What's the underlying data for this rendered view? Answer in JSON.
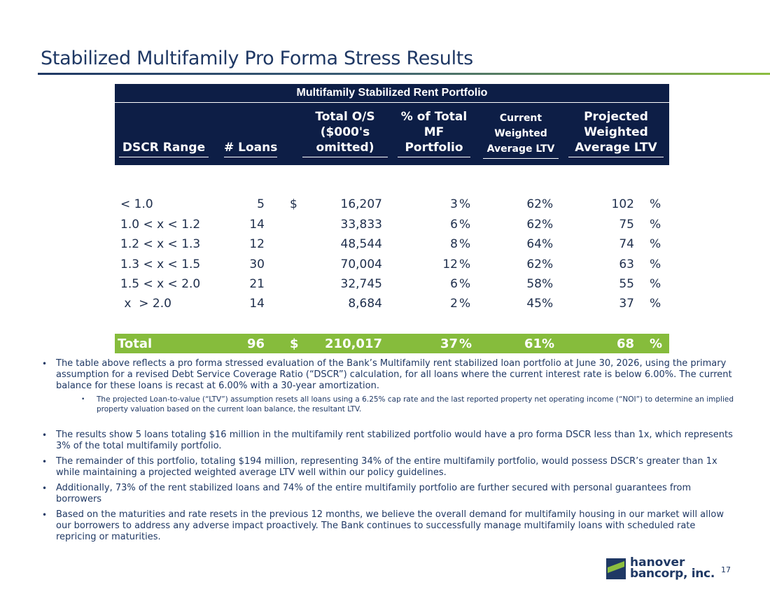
{
  "slide": {
    "title": "Stabilized Multifamily Pro Forma Stress Results",
    "page_number": "17"
  },
  "table": {
    "title": "Multifamily Stabilized Rent Portfolio",
    "headers": {
      "dscr_range": "DSCR Range",
      "loans": "# Loans",
      "total_os": [
        "Total O/S",
        "($000's",
        "omitted)"
      ],
      "pct_total": [
        "% of Total",
        "MF",
        "Portfolio"
      ],
      "current_ltv": [
        "Current",
        "Weighted",
        "Average LTV"
      ],
      "projected_ltv": [
        "Projected",
        "Weighted",
        "Average LTV"
      ]
    },
    "rows": [
      {
        "range": "< 1.0",
        "loans": "5",
        "dollar": "$",
        "total_os": "16,207",
        "pct": "3",
        "pct_sym": "%",
        "current_ltv": "62",
        "current_sym": "%",
        "projected_ltv": "102",
        "projected_sym": "%"
      },
      {
        "range": "1.0 < x  < 1.2",
        "loans": "14",
        "dollar": "",
        "total_os": "33,833",
        "pct": "6",
        "pct_sym": "%",
        "current_ltv": "62",
        "current_sym": "%",
        "projected_ltv": "75",
        "projected_sym": "%"
      },
      {
        "range": "1.2 < x  < 1.3",
        "loans": "12",
        "dollar": "",
        "total_os": "48,544",
        "pct": "8",
        "pct_sym": "%",
        "current_ltv": "64",
        "current_sym": "%",
        "projected_ltv": "74",
        "projected_sym": "%"
      },
      {
        "range": "1.3 < x  < 1.5",
        "loans": "30",
        "dollar": "",
        "total_os": "70,004",
        "pct": "12",
        "pct_sym": "%",
        "current_ltv": "62",
        "current_sym": "%",
        "projected_ltv": "63",
        "projected_sym": "%"
      },
      {
        "range": "1.5 < x  < 2.0",
        "loans": "21",
        "dollar": "",
        "total_os": "32,745",
        "pct": "6",
        "pct_sym": "%",
        "current_ltv": "58",
        "current_sym": "%",
        "projected_ltv": "55",
        "projected_sym": "%"
      },
      {
        "range": " x  > 2.0",
        "loans": "14",
        "dollar": "",
        "total_os": "8,684",
        "pct": "2",
        "pct_sym": "%",
        "current_ltv": "45",
        "current_sym": "%",
        "projected_ltv": "37",
        "projected_sym": "%"
      }
    ],
    "total": {
      "label": "Total",
      "loans": "96",
      "dollar": "$",
      "total_os": "210,017",
      "pct": "37",
      "pct_sym": "%",
      "current_ltv": "61",
      "current_sym": "%",
      "projected_ltv": "68",
      "projected_sym": "%"
    }
  },
  "bullets": {
    "b1": "The table above reflects a pro forma stressed evaluation of the Bank’s Multifamily rent stabilized loan portfolio at June 30, 2026, using the primary assumption for a revised Debt Service Coverage Ratio (“DSCR”) calculation, for all loans where the current interest rate is below 6.00%.  The current balance for these loans is recast at 6.00% with a 30-year amortization.",
    "b1_sub": "The projected Loan-to-value (“LTV”) assumption resets all loans using a 6.25% cap rate and the last reported property net operating income (“NOI”) to determine an implied property valuation based on the current loan balance, the resultant LTV.",
    "b2": "The results show 5 loans totaling $16 million in the multifamily rent stabilized portfolio would have a pro forma DSCR less than 1x, which represents 3% of the total multifamily portfolio.",
    "b3": "The remainder of this portfolio, totaling $194 million, representing 34% of the entire multifamily portfolio, would possess DSCR’s greater than 1x while maintaining a projected weighted average LTV well within our policy guidelines.",
    "b4": "Additionally, 73% of the rent stabilized loans and 74% of the entire multifamily portfolio are further secured with personal guarantees from borrowers",
    "b5": "Based on the maturities and rate resets in the previous 12 months, we believe the overall demand for multifamily housing in our market will allow our borrowers to address any adverse impact proactively.  The Bank continues to successfully manage multifamily loans with scheduled rate repricing or maturities."
  },
  "logo": {
    "line1": "hanover",
    "line2": "bancorp, inc.",
    "icon": "hanover-logo-icon",
    "colors": {
      "navy": "#1f3864",
      "green": "#8cbe3f"
    }
  }
}
